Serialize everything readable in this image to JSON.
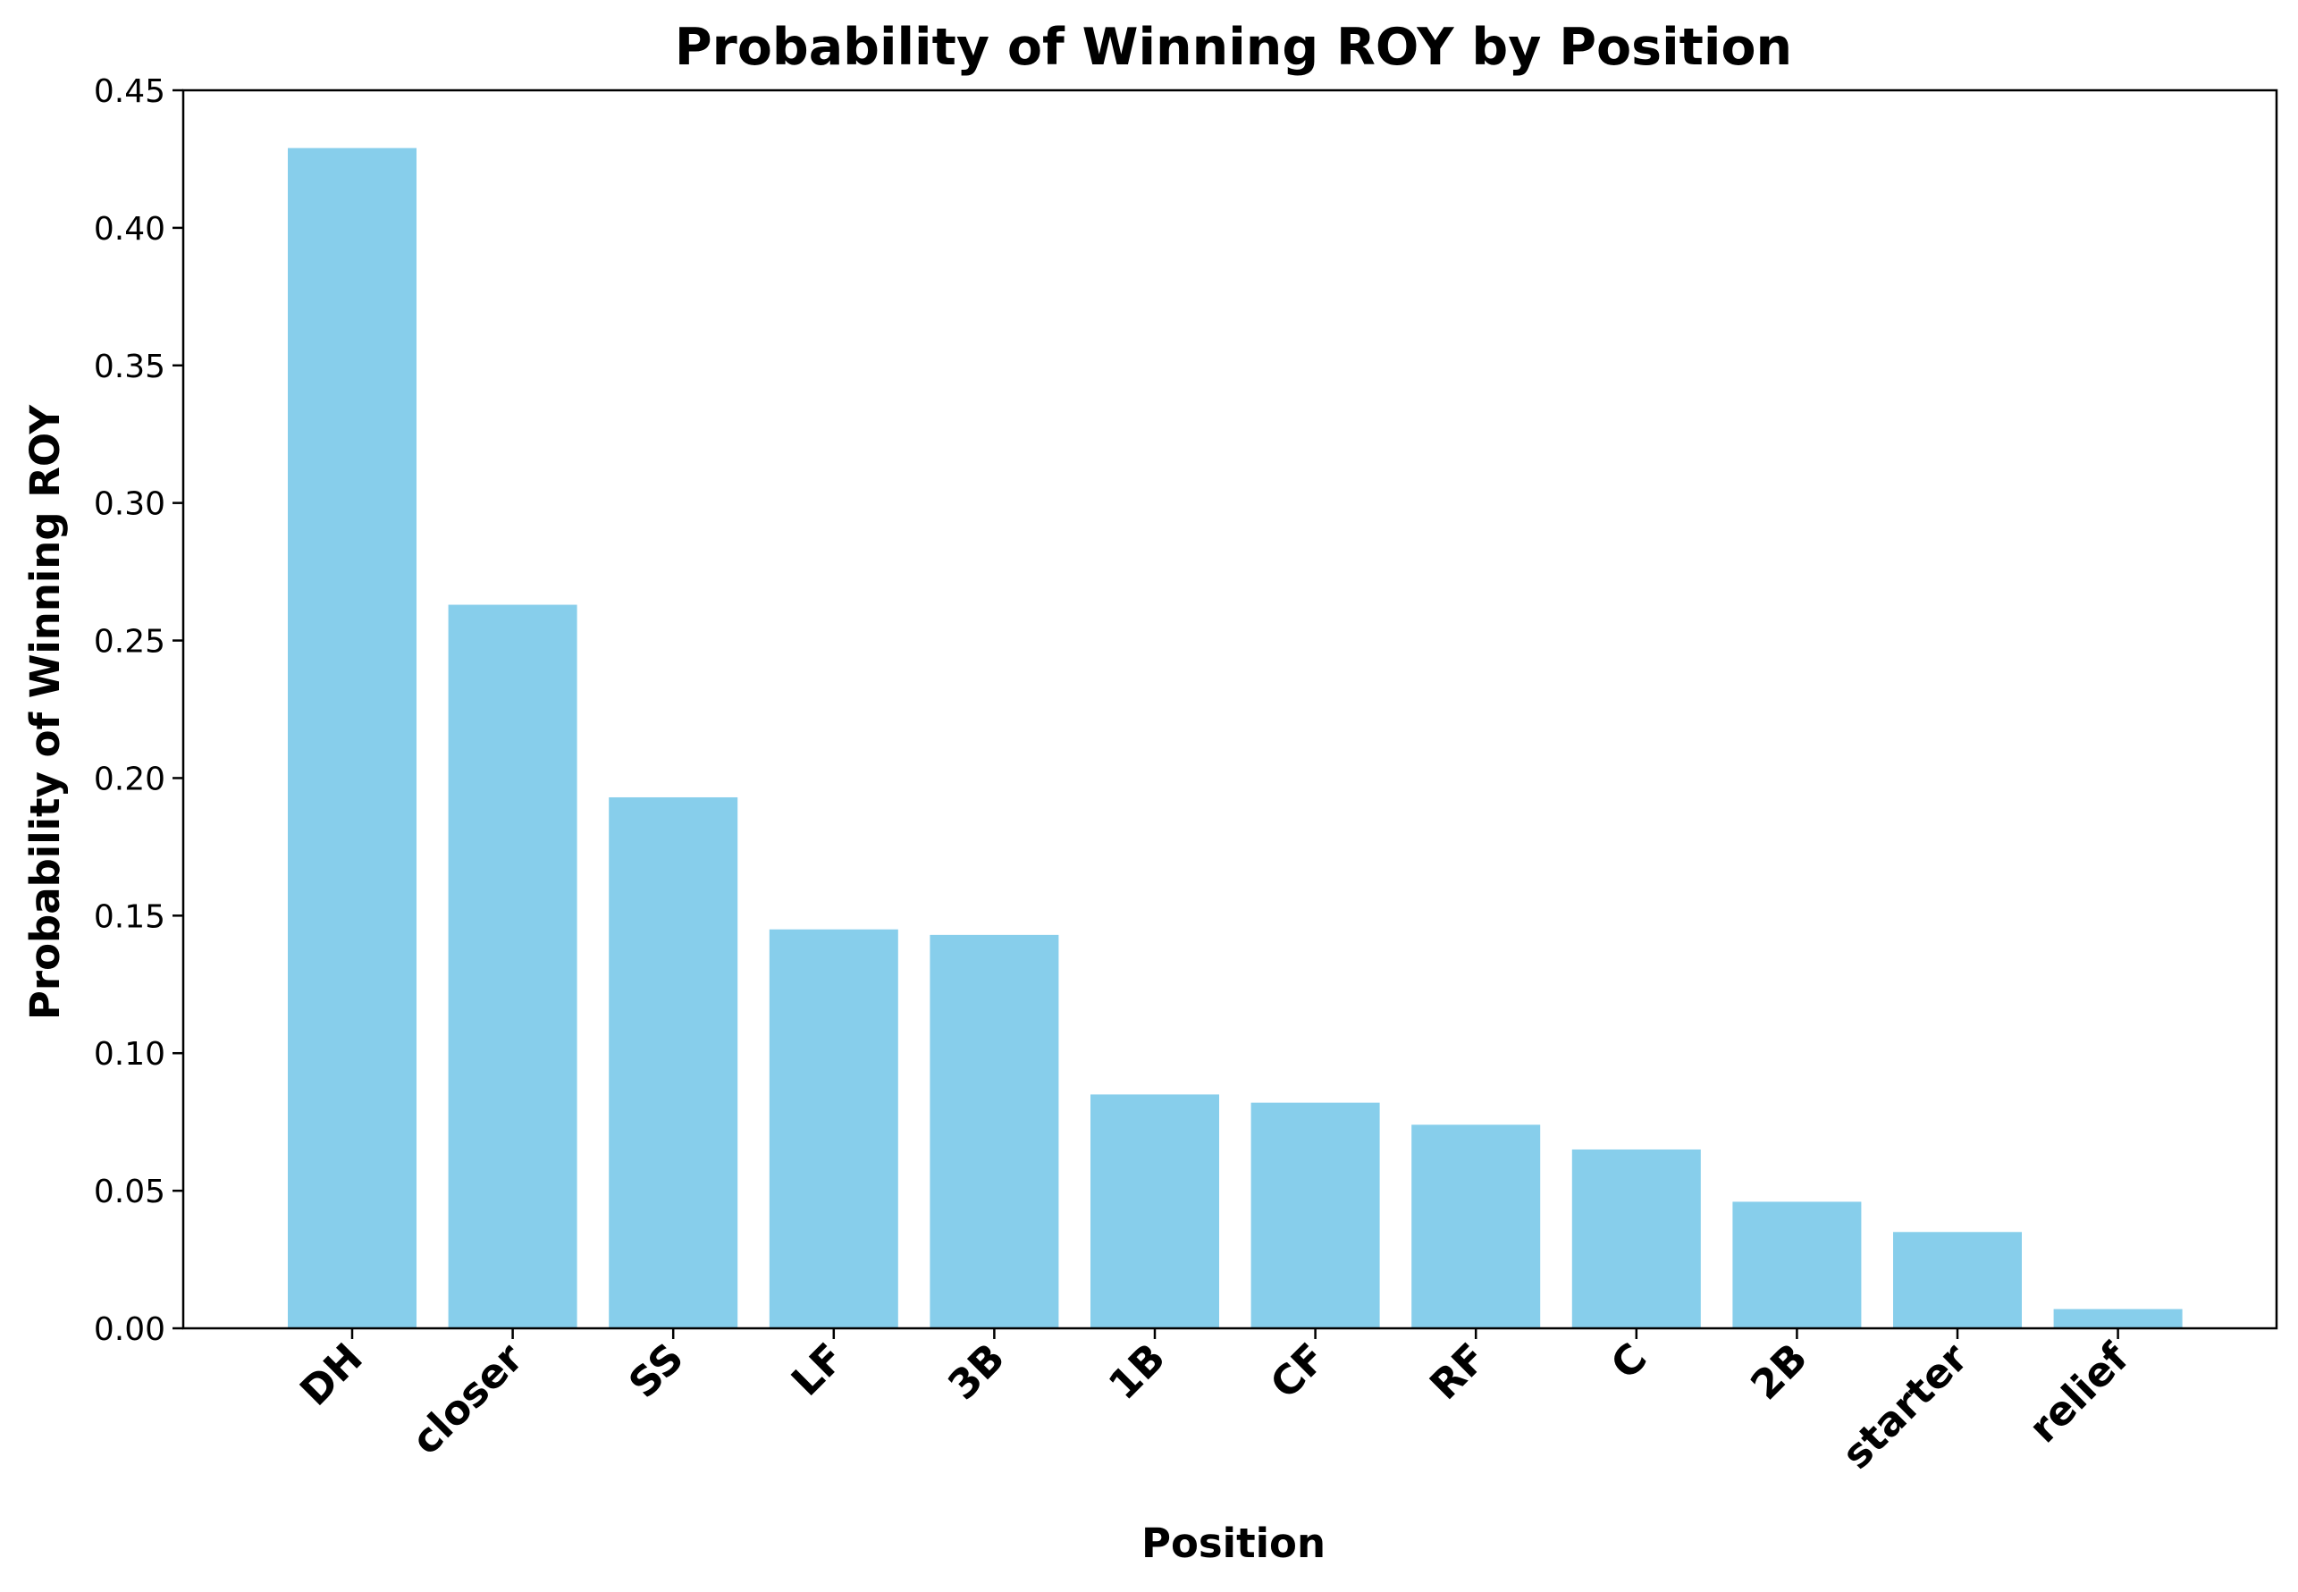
{
  "chart_data": {
    "type": "bar",
    "title": "Probability of Winning ROY by Position",
    "xlabel": "Position",
    "ylabel": "Probability of Winning ROY",
    "categories": [
      "DH",
      "closer",
      "SS",
      "LF",
      "3B",
      "1B",
      "CF",
      "RF",
      "C",
      "2B",
      "starter",
      "relief"
    ],
    "values": [
      0.429,
      0.263,
      0.193,
      0.145,
      0.143,
      0.085,
      0.082,
      0.074,
      0.065,
      0.046,
      0.035,
      0.007
    ],
    "ylim": [
      0,
      0.45
    ],
    "yticks": [
      "0.00",
      "0.05",
      "0.10",
      "0.15",
      "0.20",
      "0.25",
      "0.30",
      "0.35",
      "0.40",
      "0.45"
    ],
    "bar_color": "#87CEEB",
    "grid": false,
    "legend": "none"
  }
}
